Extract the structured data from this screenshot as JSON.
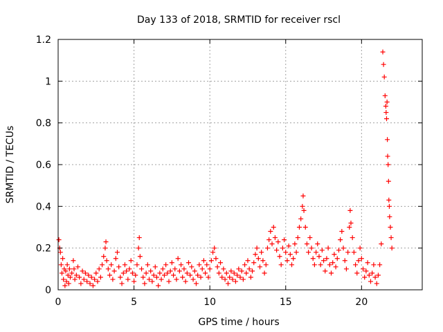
{
  "chart_data": {
    "type": "scatter",
    "title": "Day 133 of 2018, SRMTID for receiver rscl",
    "xlabel": "GPS time / hours",
    "ylabel": "SRMTID / TECUs",
    "xlim": [
      0,
      24
    ],
    "ylim": [
      0,
      1.2
    ],
    "xticks": [
      0,
      5,
      10,
      15,
      20
    ],
    "xtick_labels": [
      "0",
      "5",
      "10",
      "15",
      "20"
    ],
    "yticks": [
      0,
      0.2,
      0.4,
      0.6,
      0.8,
      1.0,
      1.2
    ],
    "ytick_labels": [
      "0",
      "0.2",
      "0.4",
      "0.6",
      "0.8",
      "1",
      "1.2"
    ],
    "grid": true,
    "marker": "+",
    "series": [
      {
        "name": "SRMTID",
        "color": "#ff0000",
        "points": [
          [
            0.05,
            0.24
          ],
          [
            0.1,
            0.2
          ],
          [
            0.15,
            0.18
          ],
          [
            0.2,
            0.12
          ],
          [
            0.25,
            0.08
          ],
          [
            0.3,
            0.15
          ],
          [
            0.35,
            0.05
          ],
          [
            0.4,
            0.1
          ],
          [
            0.45,
            0.02
          ],
          [
            0.5,
            0.09
          ],
          [
            0.55,
            0.04
          ],
          [
            0.6,
            0.12
          ],
          [
            0.65,
            0.07
          ],
          [
            0.7,
            0.03
          ],
          [
            0.75,
            0.1
          ],
          [
            0.8,
            0.06
          ],
          [
            0.9,
            0.08
          ],
          [
            1.0,
            0.14
          ],
          [
            1.05,
            0.1
          ],
          [
            1.1,
            0.05
          ],
          [
            1.2,
            0.07
          ],
          [
            1.3,
            0.11
          ],
          [
            1.4,
            0.06
          ],
          [
            1.5,
            0.03
          ],
          [
            1.6,
            0.09
          ],
          [
            1.7,
            0.05
          ],
          [
            1.8,
            0.08
          ],
          [
            1.9,
            0.04
          ],
          [
            2.0,
            0.07
          ],
          [
            2.1,
            0.03
          ],
          [
            2.2,
            0.06
          ],
          [
            2.3,
            0.02
          ],
          [
            2.4,
            0.05
          ],
          [
            2.5,
            0.08
          ],
          [
            2.6,
            0.04
          ],
          [
            2.7,
            0.1
          ],
          [
            2.8,
            0.06
          ],
          [
            2.9,
            0.12
          ],
          [
            3.0,
            0.16
          ],
          [
            3.1,
            0.2
          ],
          [
            3.15,
            0.23
          ],
          [
            3.2,
            0.14
          ],
          [
            3.3,
            0.1
          ],
          [
            3.4,
            0.07
          ],
          [
            3.5,
            0.12
          ],
          [
            3.6,
            0.05
          ],
          [
            3.7,
            0.09
          ],
          [
            3.8,
            0.15
          ],
          [
            3.9,
            0.18
          ],
          [
            4.0,
            0.11
          ],
          [
            4.1,
            0.06
          ],
          [
            4.2,
            0.03
          ],
          [
            4.3,
            0.08
          ],
          [
            4.4,
            0.12
          ],
          [
            4.5,
            0.09
          ],
          [
            4.6,
            0.05
          ],
          [
            4.7,
            0.1
          ],
          [
            4.8,
            0.14
          ],
          [
            4.9,
            0.08
          ],
          [
            5.0,
            0.04
          ],
          [
            5.1,
            0.07
          ],
          [
            5.2,
            0.12
          ],
          [
            5.3,
            0.2
          ],
          [
            5.35,
            0.25
          ],
          [
            5.4,
            0.16
          ],
          [
            5.5,
            0.1
          ],
          [
            5.6,
            0.06
          ],
          [
            5.7,
            0.03
          ],
          [
            5.8,
            0.08
          ],
          [
            5.9,
            0.12
          ],
          [
            6.0,
            0.05
          ],
          [
            6.1,
            0.09
          ],
          [
            6.2,
            0.04
          ],
          [
            6.3,
            0.07
          ],
          [
            6.4,
            0.11
          ],
          [
            6.5,
            0.06
          ],
          [
            6.6,
            0.02
          ],
          [
            6.7,
            0.08
          ],
          [
            6.8,
            0.05
          ],
          [
            6.9,
            0.1
          ],
          [
            7.0,
            0.07
          ],
          [
            7.1,
            0.12
          ],
          [
            7.2,
            0.08
          ],
          [
            7.3,
            0.04
          ],
          [
            7.4,
            0.09
          ],
          [
            7.5,
            0.13
          ],
          [
            7.6,
            0.07
          ],
          [
            7.7,
            0.1
          ],
          [
            7.8,
            0.05
          ],
          [
            7.9,
            0.15
          ],
          [
            8.0,
            0.09
          ],
          [
            8.1,
            0.12
          ],
          [
            8.2,
            0.06
          ],
          [
            8.3,
            0.1
          ],
          [
            8.4,
            0.04
          ],
          [
            8.5,
            0.08
          ],
          [
            8.6,
            0.13
          ],
          [
            8.7,
            0.07
          ],
          [
            8.8,
            0.11
          ],
          [
            8.9,
            0.05
          ],
          [
            9.0,
            0.09
          ],
          [
            9.1,
            0.03
          ],
          [
            9.2,
            0.07
          ],
          [
            9.3,
            0.12
          ],
          [
            9.4,
            0.06
          ],
          [
            9.5,
            0.1
          ],
          [
            9.6,
            0.14
          ],
          [
            9.7,
            0.08
          ],
          [
            9.8,
            0.12
          ],
          [
            9.9,
            0.06
          ],
          [
            10.0,
            0.1
          ],
          [
            10.1,
            0.14
          ],
          [
            10.2,
            0.18
          ],
          [
            10.3,
            0.2
          ],
          [
            10.4,
            0.15
          ],
          [
            10.5,
            0.11
          ],
          [
            10.6,
            0.08
          ],
          [
            10.7,
            0.13
          ],
          [
            10.8,
            0.06
          ],
          [
            10.9,
            0.1
          ],
          [
            11.0,
            0.05
          ],
          [
            11.1,
            0.08
          ],
          [
            11.2,
            0.03
          ],
          [
            11.3,
            0.06
          ],
          [
            11.4,
            0.09
          ],
          [
            11.5,
            0.05
          ],
          [
            11.6,
            0.08
          ],
          [
            11.7,
            0.04
          ],
          [
            11.8,
            0.07
          ],
          [
            11.9,
            0.1
          ],
          [
            12.0,
            0.06
          ],
          [
            12.1,
            0.09
          ],
          [
            12.2,
            0.05
          ],
          [
            12.3,
            0.12
          ],
          [
            12.4,
            0.08
          ],
          [
            12.5,
            0.14
          ],
          [
            12.6,
            0.1
          ],
          [
            12.7,
            0.06
          ],
          [
            12.8,
            0.09
          ],
          [
            12.9,
            0.13
          ],
          [
            13.0,
            0.17
          ],
          [
            13.1,
            0.2
          ],
          [
            13.2,
            0.15
          ],
          [
            13.3,
            0.11
          ],
          [
            13.4,
            0.18
          ],
          [
            13.5,
            0.14
          ],
          [
            13.6,
            0.08
          ],
          [
            13.7,
            0.12
          ],
          [
            13.8,
            0.2
          ],
          [
            13.9,
            0.24
          ],
          [
            14.0,
            0.28
          ],
          [
            14.1,
            0.22
          ],
          [
            14.2,
            0.3
          ],
          [
            14.3,
            0.25
          ],
          [
            14.4,
            0.19
          ],
          [
            14.5,
            0.23
          ],
          [
            14.6,
            0.16
          ],
          [
            14.7,
            0.12
          ],
          [
            14.8,
            0.2
          ],
          [
            14.9,
            0.24
          ],
          [
            15.0,
            0.18
          ],
          [
            15.1,
            0.14
          ],
          [
            15.2,
            0.21
          ],
          [
            15.3,
            0.17
          ],
          [
            15.4,
            0.12
          ],
          [
            15.5,
            0.15
          ],
          [
            15.6,
            0.22
          ],
          [
            15.7,
            0.18
          ],
          [
            15.8,
            0.25
          ],
          [
            15.9,
            0.3
          ],
          [
            16.0,
            0.34
          ],
          [
            16.1,
            0.4
          ],
          [
            16.15,
            0.45
          ],
          [
            16.2,
            0.38
          ],
          [
            16.3,
            0.3
          ],
          [
            16.4,
            0.22
          ],
          [
            16.5,
            0.18
          ],
          [
            16.6,
            0.25
          ],
          [
            16.7,
            0.2
          ],
          [
            16.8,
            0.15
          ],
          [
            16.9,
            0.12
          ],
          [
            17.0,
            0.18
          ],
          [
            17.1,
            0.22
          ],
          [
            17.2,
            0.16
          ],
          [
            17.3,
            0.12
          ],
          [
            17.4,
            0.19
          ],
          [
            17.5,
            0.14
          ],
          [
            17.6,
            0.09
          ],
          [
            17.7,
            0.15
          ],
          [
            17.8,
            0.2
          ],
          [
            17.9,
            0.12
          ],
          [
            18.0,
            0.08
          ],
          [
            18.1,
            0.13
          ],
          [
            18.2,
            0.17
          ],
          [
            18.3,
            0.11
          ],
          [
            18.4,
            0.15
          ],
          [
            18.5,
            0.19
          ],
          [
            18.6,
            0.24
          ],
          [
            18.7,
            0.28
          ],
          [
            18.8,
            0.2
          ],
          [
            18.9,
            0.14
          ],
          [
            19.0,
            0.1
          ],
          [
            19.1,
            0.18
          ],
          [
            19.2,
            0.3
          ],
          [
            19.25,
            0.38
          ],
          [
            19.3,
            0.32
          ],
          [
            19.4,
            0.25
          ],
          [
            19.5,
            0.18
          ],
          [
            19.6,
            0.12
          ],
          [
            19.7,
            0.08
          ],
          [
            19.8,
            0.14
          ],
          [
            19.9,
            0.2
          ],
          [
            20.0,
            0.15
          ],
          [
            20.1,
            0.1
          ],
          [
            20.2,
            0.06
          ],
          [
            20.3,
            0.09
          ],
          [
            20.4,
            0.13
          ],
          [
            20.5,
            0.07
          ],
          [
            20.6,
            0.04
          ],
          [
            20.7,
            0.08
          ],
          [
            20.8,
            0.12
          ],
          [
            20.9,
            0.06
          ],
          [
            21.0,
            0.03
          ],
          [
            21.1,
            0.07
          ],
          [
            21.2,
            0.12
          ],
          [
            21.3,
            0.22
          ],
          [
            21.4,
            1.14
          ],
          [
            21.45,
            1.08
          ],
          [
            21.5,
            1.02
          ],
          [
            21.55,
            0.93
          ],
          [
            21.6,
            0.88
          ],
          [
            21.62,
            0.85
          ],
          [
            21.65,
            0.82
          ],
          [
            21.68,
            0.9
          ],
          [
            21.7,
            0.72
          ],
          [
            21.72,
            0.64
          ],
          [
            21.75,
            0.6
          ],
          [
            21.78,
            0.52
          ],
          [
            21.8,
            0.43
          ],
          [
            21.83,
            0.4
          ],
          [
            21.85,
            0.35
          ],
          [
            21.9,
            0.3
          ],
          [
            21.95,
            0.25
          ],
          [
            22.0,
            0.2
          ]
        ]
      }
    ]
  }
}
